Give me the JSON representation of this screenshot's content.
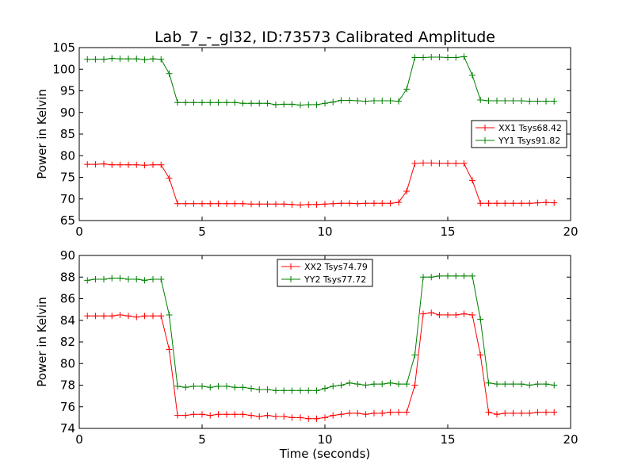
{
  "figure": {
    "title": "Lab_7_-_gl32, ID:73573 Calibrated Amplitude"
  },
  "chart_data": [
    {
      "type": "line",
      "title": "Lab_7_-_gl32, ID:73573 Calibrated Amplitude",
      "xlabel": "",
      "ylabel": "Power in Kelvin",
      "xlim": [
        0,
        20
      ],
      "ylim": [
        65,
        105
      ],
      "xticks": [
        0,
        5,
        10,
        15,
        20
      ],
      "yticks": [
        65,
        70,
        75,
        80,
        85,
        90,
        95,
        100,
        105
      ],
      "grid": false,
      "legend_position": "center-right",
      "x": [
        0.33,
        0.66,
        1.0,
        1.33,
        1.66,
        2.0,
        2.33,
        2.66,
        3.0,
        3.33,
        3.66,
        4.0,
        4.33,
        4.66,
        5.0,
        5.33,
        5.66,
        6.0,
        6.33,
        6.66,
        7.0,
        7.33,
        7.66,
        8.0,
        8.33,
        8.66,
        9.0,
        9.33,
        9.66,
        10.0,
        10.33,
        10.66,
        11.0,
        11.33,
        11.66,
        12.0,
        12.33,
        12.66,
        13.0,
        13.33,
        13.66,
        14.0,
        14.33,
        14.66,
        15.0,
        15.33,
        15.66,
        16.0,
        16.33,
        16.66,
        17.0,
        17.33,
        17.66,
        18.0,
        18.33,
        18.66,
        19.0,
        19.33
      ],
      "series": [
        {
          "name": "XX1 Tsys68.42",
          "color": "#ff0000",
          "values": [
            78.0,
            78.0,
            78.1,
            77.9,
            77.9,
            77.9,
            77.9,
            77.8,
            77.9,
            77.9,
            74.8,
            68.9,
            68.9,
            68.9,
            68.9,
            68.9,
            68.9,
            68.9,
            68.9,
            68.9,
            68.8,
            68.8,
            68.8,
            68.8,
            68.8,
            68.7,
            68.6,
            68.7,
            68.7,
            68.8,
            68.9,
            69.0,
            69.0,
            68.9,
            69.0,
            69.0,
            69.0,
            69.0,
            69.2,
            71.8,
            78.2,
            78.3,
            78.3,
            78.2,
            78.2,
            78.2,
            78.2,
            74.3,
            69.0,
            69.0,
            69.0,
            69.0,
            69.0,
            69.0,
            69.0,
            69.1,
            69.2,
            69.1
          ]
        },
        {
          "name": "YY1 Tsys91.82",
          "color": "#008000",
          "values": [
            102.3,
            102.3,
            102.3,
            102.5,
            102.4,
            102.4,
            102.4,
            102.2,
            102.4,
            102.3,
            99.0,
            92.3,
            92.3,
            92.3,
            92.3,
            92.3,
            92.3,
            92.3,
            92.3,
            92.1,
            92.1,
            92.1,
            92.1,
            91.8,
            91.9,
            91.9,
            91.7,
            91.8,
            91.8,
            92.1,
            92.4,
            92.8,
            92.8,
            92.7,
            92.6,
            92.7,
            92.7,
            92.7,
            92.6,
            95.4,
            102.7,
            102.7,
            102.8,
            102.8,
            102.7,
            102.7,
            102.9,
            98.6,
            92.9,
            92.7,
            92.7,
            92.7,
            92.7,
            92.7,
            92.6,
            92.6,
            92.6,
            92.6
          ]
        }
      ]
    },
    {
      "type": "line",
      "title": "",
      "xlabel": "Time (seconds)",
      "ylabel": "Power in Kelvin",
      "xlim": [
        0,
        20
      ],
      "ylim": [
        74,
        90
      ],
      "xticks": [
        0,
        5,
        10,
        15,
        20
      ],
      "yticks": [
        74,
        76,
        78,
        80,
        82,
        84,
        86,
        88,
        90
      ],
      "grid": false,
      "legend_position": "top-center",
      "x": [
        0.33,
        0.66,
        1.0,
        1.33,
        1.66,
        2.0,
        2.33,
        2.66,
        3.0,
        3.33,
        3.66,
        4.0,
        4.33,
        4.66,
        5.0,
        5.33,
        5.66,
        6.0,
        6.33,
        6.66,
        7.0,
        7.33,
        7.66,
        8.0,
        8.33,
        8.66,
        9.0,
        9.33,
        9.66,
        10.0,
        10.33,
        10.66,
        11.0,
        11.33,
        11.66,
        12.0,
        12.33,
        12.66,
        13.0,
        13.33,
        13.66,
        14.0,
        14.33,
        14.66,
        15.0,
        15.33,
        15.66,
        16.0,
        16.33,
        16.66,
        17.0,
        17.33,
        17.66,
        18.0,
        18.33,
        18.66,
        19.0,
        19.33
      ],
      "series": [
        {
          "name": "XX2 Tsys74.79",
          "color": "#ff0000",
          "values": [
            84.4,
            84.4,
            84.4,
            84.4,
            84.5,
            84.4,
            84.3,
            84.4,
            84.4,
            84.4,
            81.3,
            75.2,
            75.2,
            75.3,
            75.3,
            75.2,
            75.3,
            75.3,
            75.3,
            75.3,
            75.2,
            75.1,
            75.2,
            75.1,
            75.1,
            75.0,
            75.0,
            74.9,
            74.9,
            75.0,
            75.2,
            75.3,
            75.4,
            75.4,
            75.3,
            75.4,
            75.4,
            75.5,
            75.5,
            75.5,
            78.0,
            84.6,
            84.7,
            84.5,
            84.5,
            84.5,
            84.6,
            84.5,
            80.8,
            75.5,
            75.3,
            75.4,
            75.4,
            75.4,
            75.4,
            75.5,
            75.5,
            75.5
          ]
        },
        {
          "name": "YY2 Tsys77.72",
          "color": "#008000",
          "values": [
            87.7,
            87.8,
            87.8,
            87.9,
            87.9,
            87.8,
            87.8,
            87.7,
            87.8,
            87.8,
            84.5,
            77.9,
            77.8,
            77.9,
            77.9,
            77.8,
            77.9,
            77.9,
            77.8,
            77.8,
            77.7,
            77.6,
            77.6,
            77.5,
            77.5,
            77.5,
            77.5,
            77.5,
            77.5,
            77.7,
            77.9,
            78.0,
            78.2,
            78.1,
            78.0,
            78.1,
            78.1,
            78.2,
            78.1,
            78.1,
            80.8,
            88.0,
            88.0,
            88.1,
            88.1,
            88.1,
            88.1,
            88.1,
            84.1,
            78.2,
            78.1,
            78.1,
            78.1,
            78.1,
            78.0,
            78.1,
            78.1,
            78.0
          ]
        }
      ]
    }
  ]
}
